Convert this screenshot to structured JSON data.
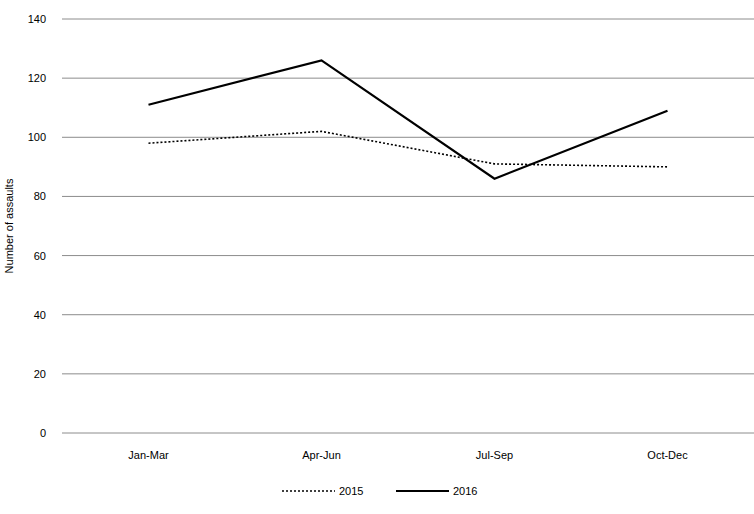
{
  "chart_data": {
    "type": "line",
    "y_label": "Number of assaults",
    "categories": [
      "Jan-Mar",
      "Apr-Jun",
      "Jul-Sep",
      "Oct-Dec"
    ],
    "series": [
      {
        "name": "2015",
        "color": "#000000",
        "line_style": "dotted",
        "values": [
          98,
          102,
          91,
          90
        ]
      },
      {
        "name": "2016",
        "color": "#000000",
        "line_style": "solid",
        "values": [
          111,
          126,
          86,
          109
        ]
      }
    ],
    "ylim": [
      0,
      140
    ],
    "yticks": [
      0,
      20,
      40,
      60,
      80,
      100,
      120,
      140
    ],
    "grid": true,
    "legend": "bottom"
  }
}
